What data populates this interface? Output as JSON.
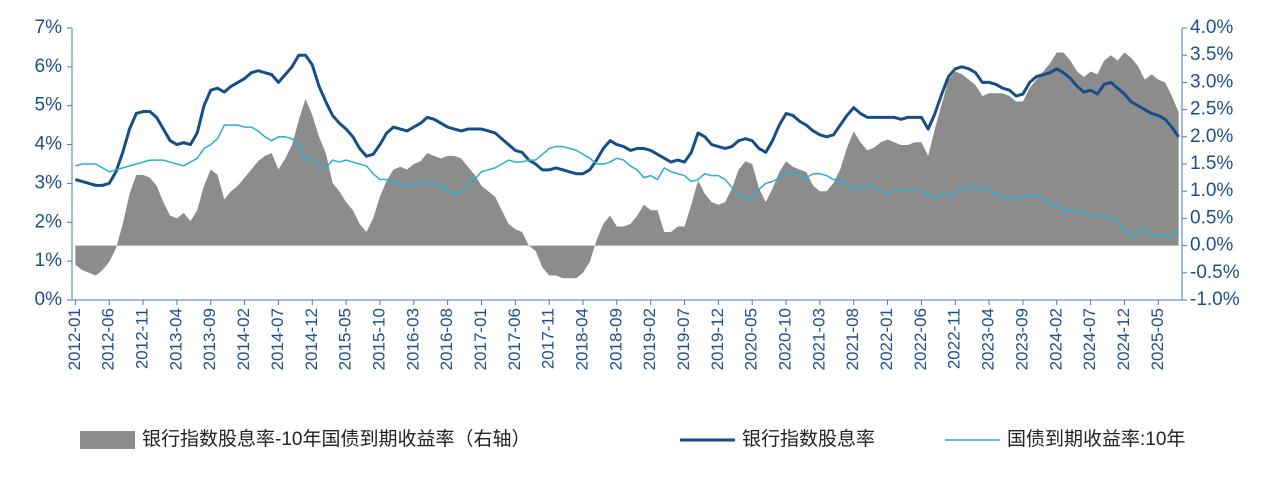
{
  "chart_data": {
    "type": "line",
    "categories": [
      "2012-01",
      null,
      null,
      null,
      null,
      "2012-06",
      null,
      null,
      null,
      null,
      "2012-11",
      null,
      null,
      null,
      null,
      "2013-04",
      null,
      null,
      null,
      null,
      "2013-09",
      null,
      null,
      null,
      null,
      "2014-02",
      null,
      null,
      null,
      null,
      "2014-07",
      null,
      null,
      null,
      null,
      "2014-12",
      null,
      null,
      null,
      null,
      "2015-05",
      null,
      null,
      null,
      null,
      "2015-10",
      null,
      null,
      null,
      null,
      "2016-03",
      null,
      null,
      null,
      null,
      "2016-08",
      null,
      null,
      null,
      null,
      "2017-01",
      null,
      null,
      null,
      null,
      "2017-06",
      null,
      null,
      null,
      null,
      "2017-11",
      null,
      null,
      null,
      null,
      "2018-04",
      null,
      null,
      null,
      null,
      "2018-09",
      null,
      null,
      null,
      null,
      "2019-02",
      null,
      null,
      null,
      null,
      "2019-07",
      null,
      null,
      null,
      null,
      "2019-12",
      null,
      null,
      null,
      null,
      "2020-05",
      null,
      null,
      null,
      null,
      "2020-10",
      null,
      null,
      null,
      null,
      "2021-03",
      null,
      null,
      null,
      null,
      "2021-08",
      null,
      null,
      null,
      null,
      "2022-01",
      null,
      null,
      null,
      null,
      "2022-06",
      null,
      null,
      null,
      null,
      "2022-11",
      null,
      null,
      null,
      null,
      "2023-04",
      null,
      null,
      null,
      null,
      "2023-09",
      null,
      null,
      null,
      null,
      "2024-02",
      null,
      null,
      null,
      null,
      "2024-07",
      null,
      null,
      null,
      null,
      "2024-12",
      null,
      null,
      null,
      null,
      "2025-05",
      null,
      null,
      null
    ],
    "series": [
      {
        "name": "银行指数股息率-10年国债到期收益率（右轴）",
        "type": "area",
        "axis": "y2",
        "color": "#8c8c8c",
        "values": [
          -0.35,
          -0.45,
          -0.5,
          -0.55,
          -0.45,
          -0.3,
          -0.05,
          0.4,
          0.95,
          1.3,
          1.3,
          1.25,
          1.1,
          0.8,
          0.55,
          0.5,
          0.6,
          0.45,
          0.65,
          1.1,
          1.4,
          1.3,
          0.85,
          1.0,
          1.1,
          1.25,
          1.4,
          1.55,
          1.65,
          1.7,
          1.4,
          1.6,
          1.85,
          2.3,
          2.7,
          2.4,
          2.0,
          1.7,
          1.15,
          1.0,
          0.8,
          0.65,
          0.4,
          0.25,
          0.5,
          0.9,
          1.2,
          1.4,
          1.45,
          1.4,
          1.5,
          1.55,
          1.7,
          1.65,
          1.6,
          1.65,
          1.65,
          1.6,
          1.45,
          1.3,
          1.1,
          1.0,
          0.9,
          0.65,
          0.4,
          0.3,
          0.25,
          0.0,
          -0.1,
          -0.4,
          -0.55,
          -0.55,
          -0.6,
          -0.6,
          -0.6,
          -0.5,
          -0.3,
          0.1,
          0.4,
          0.55,
          0.35,
          0.35,
          0.4,
          0.55,
          0.75,
          0.65,
          0.65,
          0.25,
          0.25,
          0.35,
          0.35,
          0.75,
          1.2,
          0.95,
          0.8,
          0.75,
          0.8,
          1.05,
          1.4,
          1.55,
          1.5,
          1.05,
          0.8,
          1.05,
          1.35,
          1.55,
          1.45,
          1.4,
          1.35,
          1.1,
          1.0,
          1.0,
          1.15,
          1.4,
          1.8,
          2.1,
          1.9,
          1.75,
          1.8,
          1.9,
          1.95,
          1.9,
          1.85,
          1.85,
          1.9,
          1.9,
          1.65,
          2.15,
          2.6,
          3.05,
          3.2,
          3.15,
          3.05,
          2.95,
          2.75,
          2.8,
          2.8,
          2.8,
          2.75,
          2.65,
          2.65,
          2.9,
          3.05,
          3.2,
          3.35,
          3.55,
          3.55,
          3.4,
          3.2,
          3.1,
          3.2,
          3.15,
          3.4,
          3.5,
          3.4,
          3.55,
          3.45,
          3.3,
          3.05,
          3.15,
          3.05,
          3.0,
          2.75,
          2.45
        ]
      },
      {
        "name": "银行指数股息率",
        "type": "line",
        "color": "#164e87",
        "width": 3,
        "values": [
          3.1,
          3.05,
          3.0,
          2.95,
          2.95,
          3.0,
          3.3,
          3.8,
          4.4,
          4.8,
          4.85,
          4.85,
          4.7,
          4.4,
          4.1,
          4.0,
          4.05,
          4.0,
          4.3,
          5.0,
          5.4,
          5.45,
          5.35,
          5.5,
          5.6,
          5.7,
          5.85,
          5.9,
          5.85,
          5.8,
          5.6,
          5.8,
          6.0,
          6.3,
          6.3,
          6.05,
          5.5,
          5.1,
          4.75,
          4.55,
          4.4,
          4.2,
          3.9,
          3.7,
          3.75,
          4.0,
          4.3,
          4.45,
          4.4,
          4.35,
          4.45,
          4.55,
          4.7,
          4.65,
          4.55,
          4.45,
          4.4,
          4.35,
          4.4,
          4.4,
          4.4,
          4.35,
          4.3,
          4.15,
          4.0,
          3.85,
          3.8,
          3.6,
          3.5,
          3.35,
          3.35,
          3.4,
          3.35,
          3.3,
          3.25,
          3.25,
          3.35,
          3.6,
          3.9,
          4.1,
          4.0,
          3.95,
          3.85,
          3.9,
          3.9,
          3.85,
          3.75,
          3.65,
          3.55,
          3.6,
          3.55,
          3.8,
          4.3,
          4.2,
          4.0,
          3.95,
          3.9,
          3.95,
          4.1,
          4.15,
          4.1,
          3.9,
          3.8,
          4.1,
          4.5,
          4.8,
          4.75,
          4.6,
          4.5,
          4.35,
          4.25,
          4.2,
          4.25,
          4.5,
          4.75,
          4.95,
          4.8,
          4.7,
          4.7,
          4.7,
          4.7,
          4.7,
          4.65,
          4.7,
          4.7,
          4.7,
          4.4,
          4.8,
          5.3,
          5.75,
          5.95,
          6.0,
          5.95,
          5.85,
          5.6,
          5.6,
          5.55,
          5.45,
          5.4,
          5.25,
          5.3,
          5.6,
          5.75,
          5.8,
          5.85,
          5.95,
          5.85,
          5.7,
          5.5,
          5.35,
          5.4,
          5.3,
          5.55,
          5.6,
          5.45,
          5.3,
          5.1,
          5.0,
          4.9,
          4.8,
          4.75,
          4.65,
          4.45,
          4.2
        ]
      },
      {
        "name": "国债到期收益率:10年",
        "type": "line",
        "color": "#2aaed0",
        "width": 1.5,
        "values": [
          3.45,
          3.5,
          3.5,
          3.5,
          3.4,
          3.3,
          3.35,
          3.4,
          3.45,
          3.5,
          3.55,
          3.6,
          3.6,
          3.6,
          3.55,
          3.5,
          3.45,
          3.55,
          3.65,
          3.9,
          4.0,
          4.15,
          4.5,
          4.5,
          4.5,
          4.45,
          4.45,
          4.35,
          4.2,
          4.1,
          4.2,
          4.2,
          4.15,
          4.0,
          3.6,
          3.65,
          3.5,
          3.4,
          3.6,
          3.55,
          3.6,
          3.55,
          3.5,
          3.45,
          3.25,
          3.1,
          3.1,
          3.05,
          2.95,
          2.95,
          2.95,
          3.0,
          3.0,
          3.0,
          2.95,
          2.8,
          2.75,
          2.75,
          2.95,
          3.1,
          3.3,
          3.35,
          3.4,
          3.5,
          3.6,
          3.55,
          3.55,
          3.6,
          3.6,
          3.75,
          3.9,
          3.95,
          3.95,
          3.9,
          3.85,
          3.75,
          3.65,
          3.5,
          3.5,
          3.55,
          3.65,
          3.6,
          3.45,
          3.35,
          3.15,
          3.2,
          3.1,
          3.4,
          3.3,
          3.25,
          3.2,
          3.05,
          3.1,
          3.25,
          3.2,
          3.2,
          3.1,
          2.9,
          2.7,
          2.6,
          2.6,
          2.85,
          3.0,
          3.05,
          3.15,
          3.25,
          3.3,
          3.2,
          3.15,
          3.25,
          3.25,
          3.2,
          3.1,
          3.1,
          2.95,
          2.85,
          2.9,
          2.95,
          2.9,
          2.8,
          2.75,
          2.8,
          2.8,
          2.85,
          2.8,
          2.8,
          2.75,
          2.65,
          2.7,
          2.7,
          2.75,
          2.85,
          2.9,
          2.9,
          2.85,
          2.8,
          2.75,
          2.65,
          2.65,
          2.6,
          2.65,
          2.7,
          2.7,
          2.6,
          2.5,
          2.4,
          2.3,
          2.3,
          2.3,
          2.25,
          2.2,
          2.15,
          2.15,
          2.1,
          2.05,
          1.75,
          1.65,
          1.7,
          1.85,
          1.65,
          1.7,
          1.65,
          1.7,
          1.75
        ]
      }
    ],
    "ylim": [
      0,
      7
    ],
    "yticks": [
      {
        "value": 0,
        "label": "0%"
      },
      {
        "value": 1,
        "label": "1%"
      },
      {
        "value": 2,
        "label": "2%"
      },
      {
        "value": 3,
        "label": "3%"
      },
      {
        "value": 4,
        "label": "4%"
      },
      {
        "value": 5,
        "label": "5%"
      },
      {
        "value": 6,
        "label": "6%"
      },
      {
        "value": 7,
        "label": "7%"
      }
    ],
    "y2lim": [
      -1,
      4
    ],
    "y2ticks": [
      {
        "value": -1,
        "label": "-1.0%"
      },
      {
        "value": -0.5,
        "label": "-0.5%"
      },
      {
        "value": 0,
        "label": "0.0%"
      },
      {
        "value": 0.5,
        "label": "0.5%"
      },
      {
        "value": 1,
        "label": "1.0%"
      },
      {
        "value": 1.5,
        "label": "1.5%"
      },
      {
        "value": 2,
        "label": "2.0%"
      },
      {
        "value": 2.5,
        "label": "2.5%"
      },
      {
        "value": 3,
        "label": "3.0%"
      },
      {
        "value": 3.5,
        "label": "3.5%"
      },
      {
        "value": 4,
        "label": "4.0%"
      }
    ],
    "grid": false,
    "legend": "bottom"
  }
}
